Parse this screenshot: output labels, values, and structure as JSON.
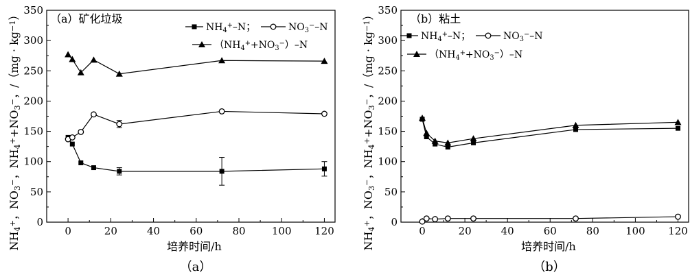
{
  "chart_data": [
    {
      "type": "line",
      "title": "（a）矿化垃圾",
      "caption": "（a）",
      "xlabel": "培养时间/h",
      "ylabel": "NH₄⁺, NO₃⁻, NH₄⁺+NO₃⁻, /（mg · kg⁻¹）",
      "xlim": [
        -10,
        125
      ],
      "ylim": [
        0,
        350
      ],
      "xticks": [
        "0",
        "20",
        "40",
        "60",
        "80",
        "100",
        "120"
      ],
      "yticks": [
        "0",
        "50",
        "100",
        "150",
        "200",
        "250",
        "300",
        "350"
      ],
      "legend_position": "top-right",
      "series": [
        {
          "name": "NH₄⁺-N",
          "marker": "filled-square",
          "x": [
            0,
            2,
            6,
            12,
            24,
            72,
            120
          ],
          "y": [
            140,
            129,
            98,
            90,
            84,
            84,
            88
          ],
          "err": [
            0,
            0,
            0,
            0,
            6,
            23,
            12
          ]
        },
        {
          "name": "NO₃⁻-N",
          "marker": "open-circle",
          "x": [
            0,
            2,
            6,
            12,
            24,
            72,
            120
          ],
          "y": [
            137,
            140,
            149,
            178,
            162,
            183,
            179
          ],
          "err": [
            0,
            0,
            0,
            0,
            6,
            0,
            0
          ]
        },
        {
          "name": "（NH₄⁺+NO₃⁻）-N",
          "marker": "filled-triangle",
          "x": [
            0,
            2,
            6,
            12,
            24,
            72,
            120
          ],
          "y": [
            277,
            269,
            247,
            268,
            245,
            267,
            266
          ],
          "err": [
            0,
            0,
            0,
            0,
            0,
            0,
            0
          ]
        }
      ]
    },
    {
      "type": "line",
      "title": "（b）粘土",
      "caption": "（b）",
      "xlabel": "培养时间/h",
      "ylabel": "NH₄⁺, NO₃⁻, NH₄⁺+NO₃⁻, /（mg · kg⁻¹）",
      "xlim": [
        -10,
        125
      ],
      "ylim": [
        0,
        350
      ],
      "xticks": [
        "0",
        "20",
        "40",
        "60",
        "80",
        "100",
        "120"
      ],
      "yticks": [
        "0",
        "50",
        "100",
        "150",
        "200",
        "250",
        "300",
        "350"
      ],
      "legend_position": "top-left",
      "series": [
        {
          "name": "NH₄⁺-N",
          "marker": "filled-square",
          "x": [
            0,
            2,
            6,
            12,
            24,
            72,
            120
          ],
          "y": [
            170,
            141,
            129,
            124,
            131,
            153,
            155
          ],
          "err": [
            0,
            0,
            0,
            0,
            0,
            0,
            0
          ]
        },
        {
          "name": "NO₃⁻-N",
          "marker": "open-circle",
          "x": [
            0,
            2,
            6,
            12,
            24,
            72,
            120
          ],
          "y": [
            1,
            6,
            5,
            6,
            6,
            6,
            9
          ],
          "err": [
            0,
            0,
            0,
            0,
            0,
            0,
            0
          ]
        },
        {
          "name": "（NH₄⁺+NO₃⁻）-N",
          "marker": "filled-triangle",
          "x": [
            0,
            2,
            6,
            12,
            24,
            72,
            120
          ],
          "y": [
            172,
            147,
            134,
            131,
            138,
            160,
            165
          ],
          "err": [
            0,
            0,
            0,
            0,
            0,
            0,
            0
          ]
        }
      ]
    }
  ],
  "legend_text": {
    "nh4": [
      "NH",
      "4",
      "+",
      "–N；"
    ],
    "no3": [
      "NO",
      "3",
      "−",
      "–N"
    ],
    "sum": [
      "（NH",
      "4",
      "+",
      "+NO",
      "3",
      "−",
      "）–N"
    ]
  },
  "ylabel_text": [
    "NH",
    "4",
    "+",
    "，NO",
    "3",
    "−",
    "，NH",
    "4",
    "+",
    "+NO",
    "3",
    "−",
    "，/（mg · kg",
    "−1",
    "）"
  ],
  "colors": {
    "axis": "#000000",
    "line": "#000000",
    "background": "#ffffff"
  }
}
